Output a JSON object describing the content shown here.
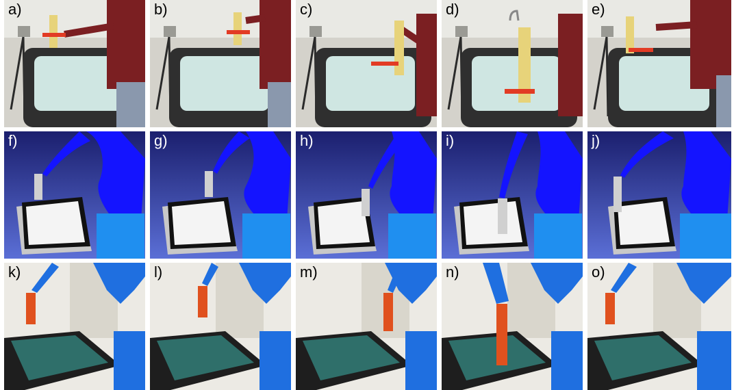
{
  "figure": {
    "rows": [
      {
        "kind": "human-demonstration",
        "labels": [
          "a)",
          "b)",
          "c)",
          "d)",
          "e)"
        ]
      },
      {
        "kind": "simulation",
        "labels": [
          "f)",
          "g)",
          "h)",
          "i)",
          "j)"
        ]
      },
      {
        "kind": "robot-execution",
        "labels": [
          "k)",
          "l)",
          "m)",
          "n)",
          "o)"
        ]
      }
    ]
  },
  "colors": {
    "sim_background_top": "#1b1f6e",
    "sim_background_bottom": "#5b6fd6",
    "robot_blue": "#1414ff",
    "pedestal_blue": "#1f8ff0",
    "gun_red": "#e23b24",
    "glass_cyan": "#cfe6e2",
    "sweater_red": "#7b1f22",
    "yaskawa_blue": "#1f6fe0"
  }
}
